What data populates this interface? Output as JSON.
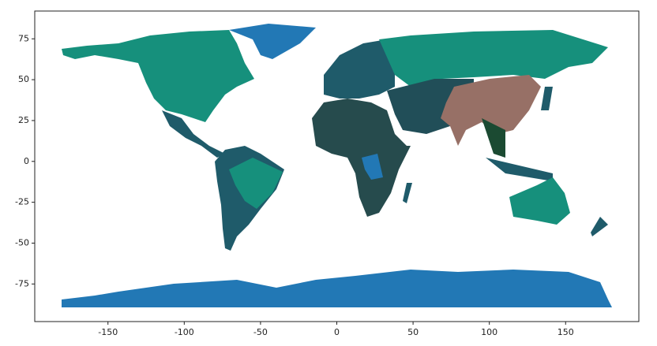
{
  "chart_data": {
    "type": "map",
    "xlim": [
      -198,
      198
    ],
    "ylim": [
      -98,
      92
    ],
    "xticks": [
      -150,
      -100,
      -50,
      0,
      50,
      100,
      150
    ],
    "yticks": [
      -75,
      -50,
      -25,
      0,
      25,
      50,
      75
    ]
  }
}
